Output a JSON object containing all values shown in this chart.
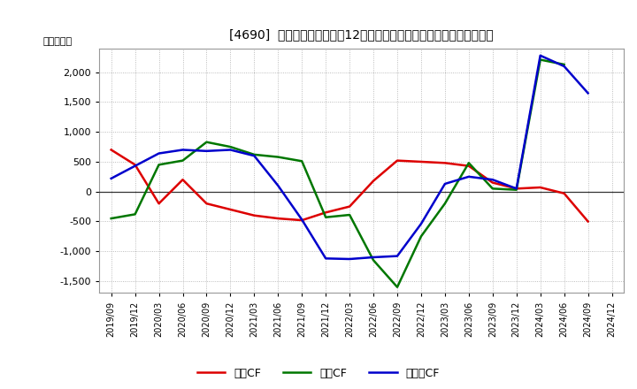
{
  "title": "[4690]  キャッシュフローの12か月移動合計の対前年同期増減額の推移",
  "ylabel": "（百万円）",
  "background_color": "#ffffff",
  "grid_color": "#aaaaaa",
  "x_labels": [
    "2019/09",
    "2019/12",
    "2020/03",
    "2020/06",
    "2020/09",
    "2020/12",
    "2021/03",
    "2021/06",
    "2021/09",
    "2021/12",
    "2022/03",
    "2022/06",
    "2022/09",
    "2022/12",
    "2023/03",
    "2023/06",
    "2023/09",
    "2023/12",
    "2024/03",
    "2024/06",
    "2024/09",
    "2024/12"
  ],
  "operating_cf": [
    700,
    450,
    -200,
    200,
    -200,
    -300,
    -400,
    -450,
    -480,
    -350,
    -250,
    180,
    520,
    500,
    480,
    430,
    150,
    50,
    70,
    -30,
    -500,
    null
  ],
  "investing_cf": [
    -450,
    -380,
    450,
    520,
    830,
    750,
    620,
    580,
    510,
    -430,
    -390,
    -1150,
    -1600,
    -750,
    -200,
    480,
    50,
    30,
    2210,
    2130,
    null,
    null
  ],
  "free_cf": [
    220,
    430,
    640,
    700,
    680,
    700,
    600,
    100,
    -470,
    -1120,
    -1130,
    -1100,
    -1080,
    -540,
    130,
    250,
    200,
    50,
    2280,
    2100,
    1650,
    null
  ],
  "ylim": [
    -1700,
    2400
  ],
  "yticks": [
    -1500,
    -1000,
    -500,
    0,
    500,
    1000,
    1500,
    2000
  ],
  "line_colors": {
    "operating": "#dd0000",
    "investing": "#007700",
    "free": "#0000cc"
  },
  "legend_labels": {
    "operating": "営業CF",
    "investing": "投資CF",
    "free": "フリーCF"
  }
}
